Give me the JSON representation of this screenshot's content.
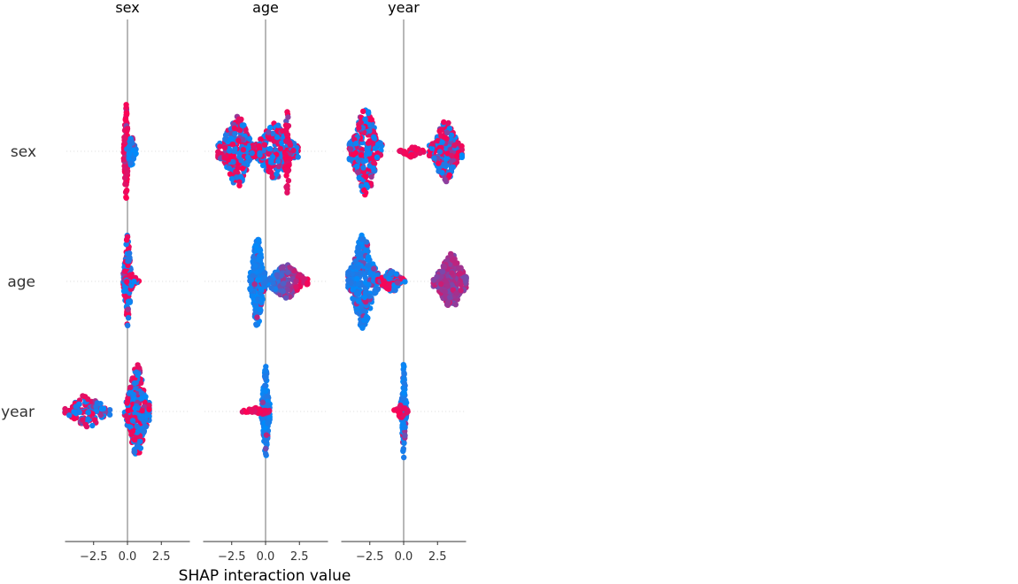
{
  "chart_data": {
    "type": "scatter",
    "subtype": "shap_interaction_summary_beeswarm",
    "features": [
      "sex",
      "age",
      "year"
    ],
    "column_titles": [
      "sex",
      "age",
      "year"
    ],
    "row_labels": [
      "sex",
      "age",
      "year"
    ],
    "xlabel": "SHAP interaction value",
    "xlim": [
      -4.5,
      4.5
    ],
    "xticks": [
      -2.5,
      0.0,
      2.5
    ],
    "xtick_labels": [
      "−2.5",
      "0.0",
      "2.5"
    ],
    "zero_line": true,
    "grid": false,
    "colors": {
      "low": "#008bfb",
      "high": "#ff0052",
      "zero_line": "#888888",
      "row_guide": "#dddddd",
      "text": "#333333"
    },
    "panels": [
      [
        {
          "row": "sex",
          "col": "sex",
          "clusters": [
            {
              "center": -0.1,
              "spread": 0.18,
              "height": 0.96,
              "count": 140,
              "color": "high"
            },
            {
              "center": 0.3,
              "spread": 0.35,
              "height": 0.3,
              "count": 50,
              "color": "low"
            }
          ]
        },
        {
          "row": "sex",
          "col": "age",
          "clusters": [
            {
              "center": -2.1,
              "spread": 1.4,
              "height": 0.72,
              "count": 230,
              "color": "mix"
            },
            {
              "center": 0.7,
              "spread": 1.7,
              "height": 0.58,
              "count": 230,
              "color": "mix"
            },
            {
              "center": 1.6,
              "spread": 0.25,
              "height": 0.88,
              "count": 40,
              "color": "high"
            }
          ]
        },
        {
          "row": "sex",
          "col": "year",
          "clusters": [
            {
              "center": -2.8,
              "spread": 1.2,
              "height": 0.9,
              "count": 280,
              "color": "mix"
            },
            {
              "center": 0.6,
              "spread": 0.9,
              "height": 0.12,
              "count": 35,
              "color": "high"
            },
            {
              "center": 3.1,
              "spread": 1.2,
              "height": 0.62,
              "count": 220,
              "color": "mix"
            }
          ]
        }
      ],
      [
        {
          "row": "age",
          "col": "sex",
          "clusters": [
            {
              "center": 0.0,
              "spread": 0.3,
              "height": 0.96,
              "count": 130,
              "color": "mix"
            },
            {
              "center": 0.4,
              "spread": 0.45,
              "height": 0.12,
              "count": 30,
              "color": "mix"
            }
          ]
        },
        {
          "row": "age",
          "col": "age",
          "clusters": [
            {
              "center": -0.6,
              "spread": 0.55,
              "height": 0.96,
              "count": 220,
              "color": "low"
            },
            {
              "center": 1.5,
              "spread": 1.6,
              "height": 0.34,
              "count": 170,
              "color": "gradient"
            }
          ]
        },
        {
          "row": "age",
          "col": "year",
          "clusters": [
            {
              "center": -3.0,
              "spread": 1.1,
              "height": 0.96,
              "count": 300,
              "color": "low"
            },
            {
              "center": -0.9,
              "spread": 1.0,
              "height": 0.22,
              "count": 80,
              "color": "mix"
            },
            {
              "center": 3.5,
              "spread": 1.3,
              "height": 0.56,
              "count": 230,
              "color": "purple"
            }
          ]
        }
      ],
      [
        {
          "row": "year",
          "col": "sex",
          "clusters": [
            {
              "center": -3.0,
              "spread": 1.7,
              "height": 0.34,
              "count": 110,
              "color": "mix"
            },
            {
              "center": 0.7,
              "spread": 0.9,
              "height": 0.96,
              "count": 260,
              "color": "mix"
            }
          ]
        },
        {
          "row": "year",
          "col": "age",
          "clusters": [
            {
              "center": 0.0,
              "spread": 0.3,
              "height": 0.96,
              "count": 160,
              "color": "low"
            },
            {
              "center": -0.7,
              "spread": 1.1,
              "height": 0.08,
              "count": 35,
              "color": "high"
            }
          ]
        },
        {
          "row": "year",
          "col": "year",
          "clusters": [
            {
              "center": 0.0,
              "spread": 0.2,
              "height": 0.96,
              "count": 110,
              "color": "low"
            },
            {
              "center": -0.2,
              "spread": 0.5,
              "height": 0.15,
              "count": 25,
              "color": "high"
            }
          ]
        }
      ]
    ]
  }
}
